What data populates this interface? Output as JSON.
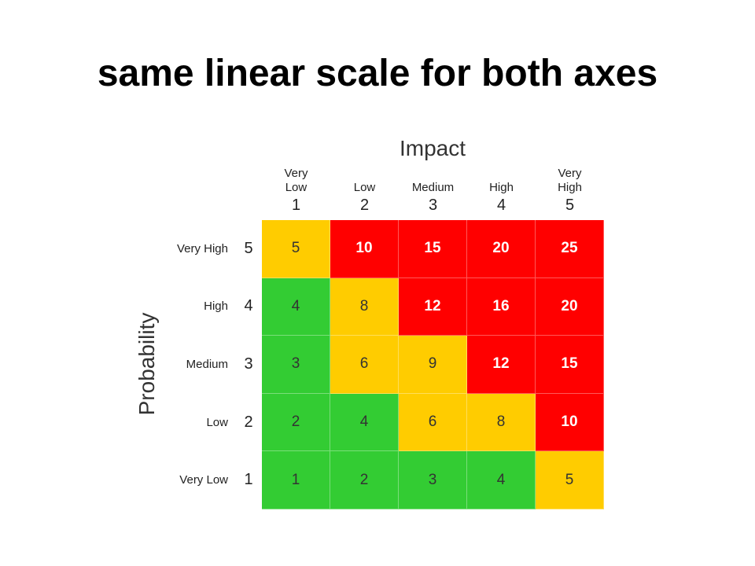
{
  "title": "same linear scale for both axes",
  "matrix": {
    "x_axis_title": "Impact",
    "y_axis_title": "Probability",
    "columns": [
      {
        "label": "Very\nLow",
        "number": "1"
      },
      {
        "label": "Low",
        "number": "2"
      },
      {
        "label": "Medium",
        "number": "3"
      },
      {
        "label": "High",
        "number": "4"
      },
      {
        "label": "Very\nHigh",
        "number": "5"
      }
    ],
    "rows": [
      {
        "label": "Very High",
        "number": "5"
      },
      {
        "label": "High",
        "number": "4"
      },
      {
        "label": "Medium",
        "number": "3"
      },
      {
        "label": "Low",
        "number": "2"
      },
      {
        "label": "Very Low",
        "number": "1"
      }
    ],
    "cells": [
      [
        "5",
        "10",
        "15",
        "20",
        "25"
      ],
      [
        "4",
        "8",
        "12",
        "16",
        "20"
      ],
      [
        "3",
        "6",
        "9",
        "12",
        "15"
      ],
      [
        "2",
        "4",
        "6",
        "8",
        "10"
      ],
      [
        "1",
        "2",
        "3",
        "4",
        "5"
      ]
    ],
    "cell_colors": [
      [
        "#ffcc00",
        "#ff0000",
        "#ff0000",
        "#ff0000",
        "#ff0000"
      ],
      [
        "#33cc33",
        "#ffcc00",
        "#ff0000",
        "#ff0000",
        "#ff0000"
      ],
      [
        "#33cc33",
        "#ffcc00",
        "#ffcc00",
        "#ff0000",
        "#ff0000"
      ],
      [
        "#33cc33",
        "#33cc33",
        "#ffcc00",
        "#ffcc00",
        "#ff0000"
      ],
      [
        "#33cc33",
        "#33cc33",
        "#33cc33",
        "#33cc33",
        "#ffcc00"
      ]
    ]
  }
}
